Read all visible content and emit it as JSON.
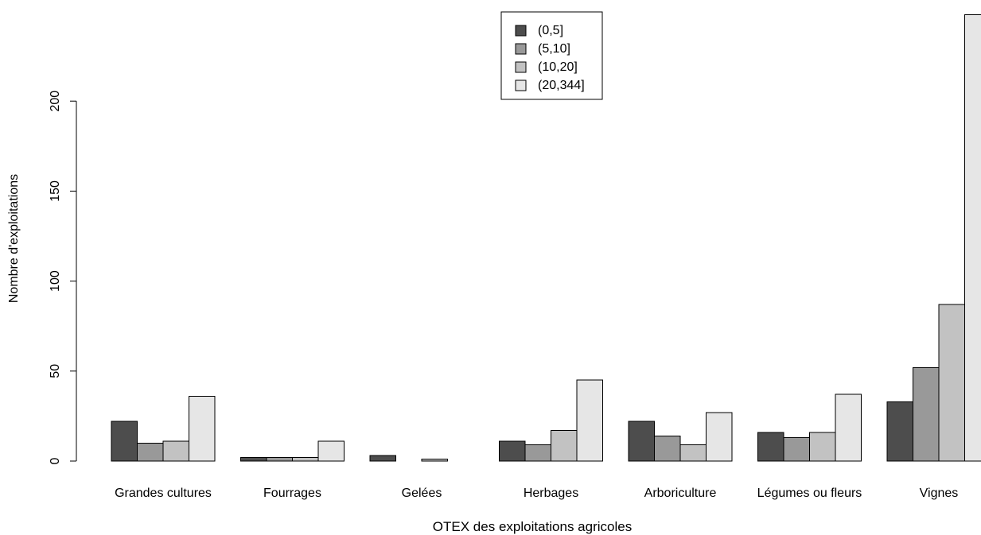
{
  "chart_data": {
    "type": "bar",
    "title": "",
    "xlabel": "OTEX des exploitations agricoles",
    "ylabel": "Nombre d'exploitations",
    "ylim": [
      0,
      250
    ],
    "yticks": [
      0,
      50,
      100,
      150,
      200
    ],
    "categories": [
      "Grandes cultures",
      "Fourrages",
      "Gelées",
      "Herbages",
      "Arboriculture",
      "Légumes ou fleurs",
      "Vignes"
    ],
    "series": [
      {
        "name": "(0,5]",
        "color": "#4d4d4d",
        "values": [
          22,
          2,
          3,
          11,
          22,
          16,
          33
        ]
      },
      {
        "name": "(5,10]",
        "color": "#999999",
        "values": [
          10,
          2,
          0,
          9,
          14,
          13,
          52
        ]
      },
      {
        "name": "(10,20]",
        "color": "#c2c2c2",
        "values": [
          11,
          2,
          1,
          17,
          9,
          16,
          87
        ]
      },
      {
        "name": "(20,344]",
        "color": "#e6e6e6",
        "values": [
          36,
          11,
          0,
          45,
          27,
          37,
          248
        ]
      }
    ],
    "legend_position": "top-center",
    "grid": false
  }
}
